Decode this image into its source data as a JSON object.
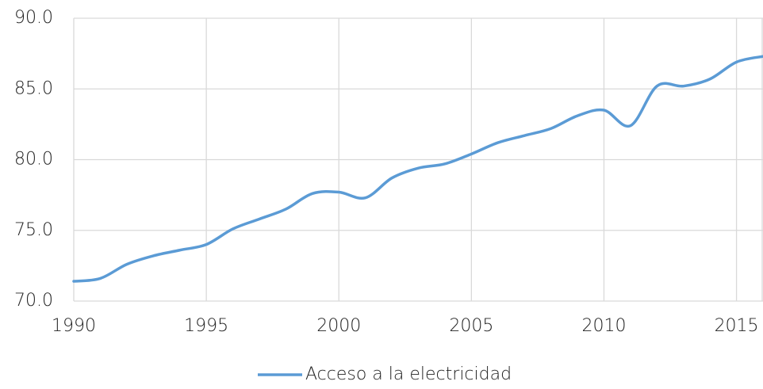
{
  "chart_data": {
    "type": "line",
    "x": [
      1990,
      1991,
      1992,
      1993,
      1994,
      1995,
      1996,
      1997,
      1998,
      1999,
      2000,
      2001,
      2002,
      2003,
      2004,
      2005,
      2006,
      2007,
      2008,
      2009,
      2010,
      2011,
      2012,
      2013,
      2014,
      2015,
      2016
    ],
    "series": [
      {
        "name": "Acceso a la electricidad",
        "color": "#5b9bd5",
        "values": [
          71.4,
          71.6,
          72.6,
          73.2,
          73.6,
          74.0,
          75.1,
          75.8,
          76.5,
          77.6,
          77.7,
          77.3,
          78.7,
          79.4,
          79.7,
          80.4,
          81.2,
          81.7,
          82.2,
          83.1,
          83.5,
          82.4,
          85.2,
          85.2,
          85.7,
          86.9,
          87.3
        ]
      }
    ],
    "xlim": [
      1990,
      2016
    ],
    "xticks": [
      1990,
      1995,
      2000,
      2005,
      2010,
      2015
    ],
    "ylim": [
      70,
      90
    ],
    "yticks": [
      {
        "value": 70,
        "label": "70.0"
      },
      {
        "value": 75,
        "label": "75.0"
      },
      {
        "value": 80,
        "label": "80.0"
      },
      {
        "value": 85,
        "label": "85.0"
      },
      {
        "value": 90,
        "label": "90.0"
      }
    ],
    "grid": true,
    "legend": "bottom"
  }
}
